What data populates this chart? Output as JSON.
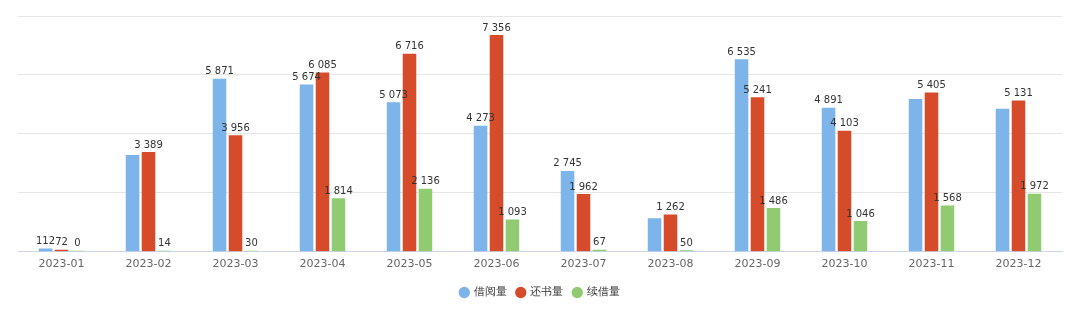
{
  "chart_data": {
    "type": "bar",
    "categories": [
      "2023-01",
      "2023-02",
      "2023-03",
      "2023-04",
      "2023-05",
      "2023-06",
      "2023-07",
      "2023-08",
      "2023-09",
      "2023-10",
      "2023-11",
      "2023-12"
    ],
    "series": [
      {
        "name": "借阅量",
        "color": "#7db4ea",
        "values": [
          112,
          3280,
          5871,
          5674,
          5073,
          4273,
          2745,
          1140,
          6535,
          4891,
          5180,
          4850
        ],
        "value_labels": [
          "112",
          null,
          "5 871",
          "5 674",
          "5 073",
          "4 273",
          "2 745",
          null,
          "6 535",
          "4 891",
          null,
          null
        ]
      },
      {
        "name": "还书量",
        "color": "#d64c2a",
        "values": [
          72,
          3389,
          3956,
          6085,
          6716,
          7356,
          1962,
          1262,
          5241,
          4103,
          5405,
          5131
        ],
        "value_labels": [
          "72",
          "3 389",
          "3 956",
          "6 085",
          "6 716",
          "7 356",
          "1 962",
          "1 262",
          "5 241",
          "4 103",
          "5 405",
          "5 131"
        ]
      },
      {
        "name": "续借量",
        "color": "#90cb72",
        "values": [
          0,
          14,
          30,
          1814,
          2136,
          1093,
          67,
          50,
          1486,
          1046,
          1568,
          1972
        ],
        "value_labels": [
          "0",
          "14",
          "30",
          "1 814",
          "2 136",
          "1 093",
          "67",
          "50",
          "1 486",
          "1 046",
          "1 568",
          "1 972"
        ]
      }
    ],
    "ylim": [
      0,
      8000
    ],
    "yticks": [
      {
        "value": 0,
        "label": null
      },
      {
        "value": 2000,
        "label": null
      },
      {
        "value": 4000,
        "label": null
      },
      {
        "value": 6000,
        "label": null
      },
      {
        "value": 8000,
        "label": null
      }
    ],
    "tick_labels": "x",
    "grid": "y",
    "legend": "bottom"
  }
}
